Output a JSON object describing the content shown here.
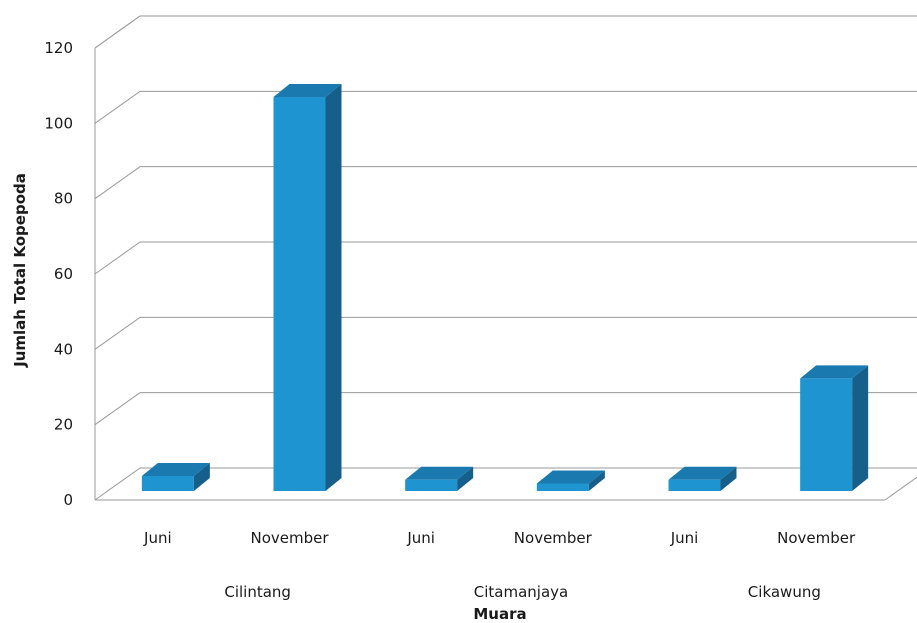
{
  "chart_data": {
    "type": "bar",
    "title": "",
    "xlabel": "Muara",
    "ylabel": "Jumlah Total Kopepoda",
    "ylim": [
      0,
      120
    ],
    "yticks": [
      "0",
      "20",
      "40",
      "60",
      "80",
      "100",
      "120"
    ],
    "groups": [
      {
        "label": "Cilintang",
        "categories": [
          "Juni",
          "November"
        ],
        "values": [
          4,
          105
        ]
      },
      {
        "label": "Citamanjaya",
        "categories": [
          "Juni",
          "November"
        ],
        "values": [
          3,
          2
        ]
      },
      {
        "label": "Cikawung",
        "categories": [
          "Juni",
          "November"
        ],
        "values": [
          3,
          30
        ]
      }
    ],
    "grid": true,
    "three_d": true,
    "colors": {
      "front": "#1e95d0",
      "side": "#155f8a",
      "top": "#1a7ab0",
      "grid": "#9a9a9a"
    }
  }
}
